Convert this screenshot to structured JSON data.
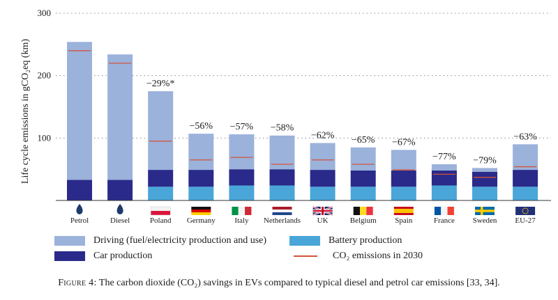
{
  "colors": {
    "driving": "#9bb2db",
    "car": "#2a2a8a",
    "battery": "#4aa6d8",
    "co2_2030": "#d2543a"
  },
  "chart_data": {
    "type": "bar",
    "stacked": true,
    "ylabel": "Life cycle emissions in gCO₂eq (km)",
    "ylim": [
      0,
      300
    ],
    "yticks": [
      100,
      200,
      300
    ],
    "grid": "dotted horizontal",
    "categories": [
      "Petrol",
      "Diesel",
      "Poland",
      "Germany",
      "Italy",
      "Netherlands",
      "UK",
      "Belgium",
      "Spain",
      "France",
      "Sweden",
      "EU-27"
    ],
    "category_icons": [
      "fuel-drop",
      "fuel-drop",
      "flag-poland",
      "flag-germany",
      "flag-italy",
      "flag-netherlands",
      "flag-uk",
      "flag-belgium",
      "flag-spain",
      "flag-france",
      "flag-sweden",
      "flag-eu"
    ],
    "series": [
      {
        "name": "Battery production",
        "key": "battery",
        "values": [
          0,
          0,
          22,
          22,
          24,
          24,
          22,
          22,
          22,
          24,
          22,
          22
        ]
      },
      {
        "name": "Car production",
        "key": "car",
        "values": [
          33,
          33,
          27,
          27,
          26,
          26,
          27,
          26,
          26,
          24,
          24,
          27
        ]
      },
      {
        "name": "Driving (fuel/electricity production and use)",
        "key": "driving",
        "values": [
          221,
          201,
          126,
          58,
          56,
          54,
          43,
          37,
          33,
          10,
          6,
          41
        ]
      }
    ],
    "co2_2030": [
      240,
      220,
      95,
      65,
      69,
      58,
      65,
      58,
      49,
      42,
      37,
      54
    ],
    "annotations": [
      "",
      "",
      "−29%*",
      "−56%",
      "−57%",
      "−58%",
      "−62%",
      "−65%",
      "−67%",
      "−77%",
      "−79%",
      "−63%"
    ],
    "legend": {
      "driving": "Driving (fuel/electricity production and use)",
      "battery": "Battery production",
      "car": "Car production",
      "co2_2030": "CO₂ emissions in 2030"
    }
  },
  "caption": {
    "label": "Figure 4:",
    "text": "The carbon dioxide (CO₂) savings in EVs compared to typical diesel and petrol car emissions [33, 34]."
  }
}
